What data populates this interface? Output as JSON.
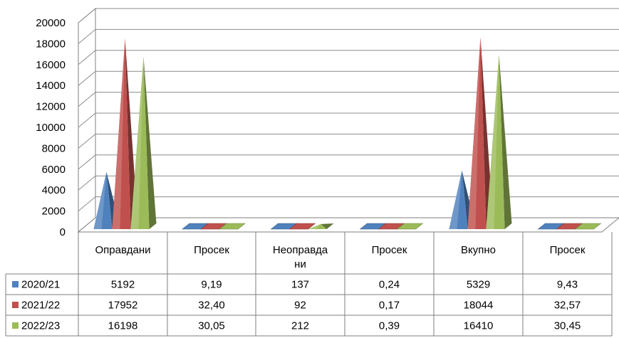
{
  "chart_data": {
    "type": "bar",
    "style": "3d-pyramid",
    "categories": [
      "Оправдани",
      "Просек",
      "Неоправда ни",
      "Просек",
      "Вкупно",
      "Просек"
    ],
    "category_lines": [
      [
        "Оправдани"
      ],
      [
        "Просек"
      ],
      [
        "Неоправда",
        "ни"
      ],
      [
        "Просек"
      ],
      [
        "Вкупно"
      ],
      [
        "Просек"
      ]
    ],
    "series": [
      {
        "name": "2020/21",
        "color": "#4f81bd",
        "values": [
          5192,
          9.19,
          137,
          0.24,
          5329,
          9.43
        ],
        "labels": [
          "5192",
          "9,19",
          "137",
          "0,24",
          "5329",
          "9,43"
        ]
      },
      {
        "name": "2021/22",
        "color": "#c0504d",
        "values": [
          17952,
          32.4,
          92,
          0.17,
          18044,
          32.57
        ],
        "labels": [
          "17952",
          "32,40",
          "92",
          "0,17",
          "18044",
          "32,57"
        ]
      },
      {
        "name": "2022/23",
        "color": "#9bbb59",
        "values": [
          16198,
          30.05,
          212,
          0.39,
          16410,
          30.45
        ],
        "labels": [
          "16198",
          "30,05",
          "212",
          "0,39",
          "16410",
          "30,45"
        ]
      }
    ],
    "ylim": [
      0,
      20000
    ],
    "yticks": [
      "0",
      "2000",
      "4000",
      "6000",
      "8000",
      "10000",
      "12000",
      "14000",
      "16000",
      "18000",
      "20000"
    ],
    "grid": true,
    "legend": "data-table"
  }
}
